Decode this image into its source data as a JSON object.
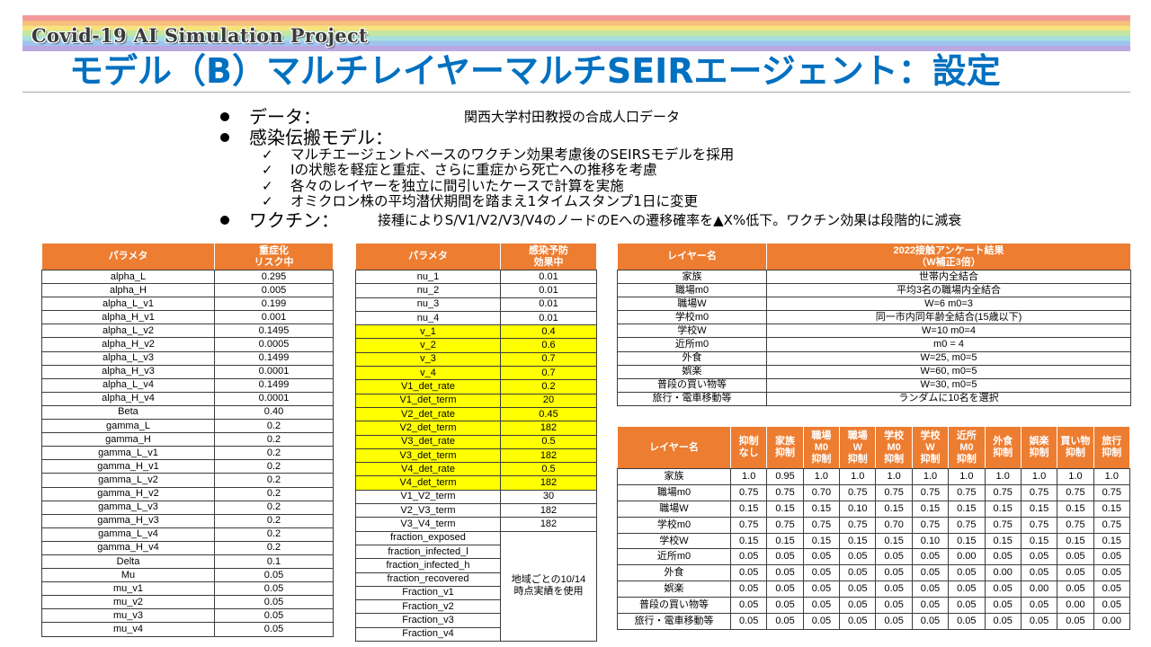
{
  "banner": {
    "title": "Covid-19 AI Simulation Project"
  },
  "slide": {
    "title": "モデル（B）マルチレイヤーマルチSEIRエージェント：設定"
  },
  "bullets": {
    "data": {
      "label": "データ：",
      "value": "関西大学村田教授の合成人口データ"
    },
    "model": {
      "label": "感染伝搬モデル：",
      "items": [
        "マルチエージェントベースのワクチン効果考慮後のSEIRSモデルを採用",
        "Iの状態を軽症と重症、さらに重症から死亡への推移を考慮",
        "各々のレイヤーを独立に間引いたケースで計算を実施",
        "オミクロン株の平均潜伏期間を踏まえ1タイムスタンプ1日に変更"
      ]
    },
    "vaccine": {
      "label": "ワクチン：",
      "value": "接種によりS/V1/V2/V3/V4のノードのEへの遷移確率を▲X%低下。ワクチン効果は段階的に減衰"
    }
  },
  "severity_table": {
    "headers": [
      "パラメタ",
      "重症化\nリスク中"
    ],
    "rows": [
      [
        "alpha_L",
        "0.295"
      ],
      [
        "alpha_H",
        "0.005"
      ],
      [
        "alpha_L_v1",
        "0.199"
      ],
      [
        "alpha_H_v1",
        "0.001"
      ],
      [
        "alpha_L_v2",
        "0.1495"
      ],
      [
        "alpha_H_v2",
        "0.0005"
      ],
      [
        "alpha_L_v3",
        "0.1499"
      ],
      [
        "alpha_H_v3",
        "0.0001"
      ],
      [
        "alpha_L_v4",
        "0.1499"
      ],
      [
        "alpha_H_v4",
        "0.0001"
      ],
      [
        "Beta",
        "0.40"
      ],
      [
        "gamma_L",
        "0.2"
      ],
      [
        "gamma_H",
        "0.2"
      ],
      [
        "gamma_L_v1",
        "0.2"
      ],
      [
        "gamma_H_v1",
        "0.2"
      ],
      [
        "gamma_L_v2",
        "0.2"
      ],
      [
        "gamma_H_v2",
        "0.2"
      ],
      [
        "gamma_L_v3",
        "0.2"
      ],
      [
        "gamma_H_v3",
        "0.2"
      ],
      [
        "gamma_L_v4",
        "0.2"
      ],
      [
        "gamma_H_v4",
        "0.2"
      ],
      [
        "Delta",
        "0.1"
      ],
      [
        "Mu",
        "0.05"
      ],
      [
        "mu_v1",
        "0.05"
      ],
      [
        "mu_v2",
        "0.05"
      ],
      [
        "mu_v3",
        "0.05"
      ],
      [
        "mu_v4",
        "0.05"
      ]
    ]
  },
  "prevention_table": {
    "headers": [
      "パラメタ",
      "感染予防\n効果中"
    ],
    "rows": [
      {
        "param": "nu_1",
        "value": "0.01"
      },
      {
        "param": "nu_2",
        "value": "0.01"
      },
      {
        "param": "nu_3",
        "value": "0.01"
      },
      {
        "param": "nu_4",
        "value": "0.01"
      },
      {
        "param": "v_1",
        "value": "0.4",
        "highlight": true
      },
      {
        "param": "v_2",
        "value": "0.6",
        "highlight": true
      },
      {
        "param": "v_3",
        "value": "0.7",
        "highlight": true
      },
      {
        "param": "v_4",
        "value": "0.7",
        "highlight": true
      },
      {
        "param": "V1_det_rate",
        "value": "0.2",
        "highlight": true
      },
      {
        "param": "V1_det_term",
        "value": "20",
        "highlight": true
      },
      {
        "param": "V2_det_rate",
        "value": "0.45",
        "highlight": true
      },
      {
        "param": "V2_det_term",
        "value": "182",
        "highlight": true
      },
      {
        "param": "V3_det_rate",
        "value": "0.5",
        "highlight": true
      },
      {
        "param": "V3_det_term",
        "value": "182",
        "highlight": true
      },
      {
        "param": "V4_det_rate",
        "value": "0.5",
        "highlight": true
      },
      {
        "param": "V4_det_term",
        "value": "182",
        "highlight": true
      },
      {
        "param": "V1_V2_term",
        "value": "30"
      },
      {
        "param": "V2_V3_term",
        "value": "182"
      },
      {
        "param": "V3_V4_term",
        "value": "182"
      },
      {
        "param": "fraction_exposed"
      },
      {
        "param": "fraction_infected_l"
      },
      {
        "param": "fraction_infected_h"
      },
      {
        "param": "fraction_recovered"
      },
      {
        "param": "Fraction_v1"
      },
      {
        "param": "Fraction_v2"
      },
      {
        "param": "Fraction_v3"
      },
      {
        "param": "Fraction_v4"
      }
    ],
    "shared_value": "地域ごとの10/14\n時点実績を使用"
  },
  "contact_table": {
    "headers": [
      "レイヤー名",
      "2022接触アンケート結果\n（W補正3倍）"
    ],
    "rows": [
      [
        "家族",
        "世帯内全結合"
      ],
      [
        "職場m0",
        "平均3名の職場内全結合"
      ],
      [
        "職場W",
        "W=6 m0=3"
      ],
      [
        "学校m0",
        "同一市内同年齢全結合(15歳以下)"
      ],
      [
        "学校W",
        "W=10 m0=4"
      ],
      [
        "近所m0",
        "m0 = 4"
      ],
      [
        "外食",
        "W=25, m0=5"
      ],
      [
        "娯楽",
        "W=60, m0=5"
      ],
      [
        "普段の買い物等",
        "W=30, m0=5"
      ],
      [
        "旅行・電車移動等",
        "ランダムに10名を選択"
      ]
    ]
  },
  "suppression_table": {
    "headers": [
      "レイヤー名",
      "抑制\nなし",
      "家族\n抑制",
      "職場\nM0\n抑制",
      "職場\nW\n抑制",
      "学校\nM0\n抑制",
      "学校\nW\n抑制",
      "近所\nM0\n抑制",
      "外食\n抑制",
      "娯楽\n抑制",
      "買い物\n抑制",
      "旅行\n抑制"
    ],
    "rows": [
      {
        "layer": "家族",
        "values": [
          "1.0",
          "0.95",
          "1.0",
          "1.0",
          "1.0",
          "1.0",
          "1.0",
          "1.0",
          "1.0",
          "1.0",
          "1.0"
        ]
      },
      {
        "layer": "職場m0",
        "values": [
          "0.75",
          "0.75",
          "0.70",
          "0.75",
          "0.75",
          "0.75",
          "0.75",
          "0.75",
          "0.75",
          "0.75",
          "0.75"
        ]
      },
      {
        "layer": "職場W",
        "values": [
          "0.15",
          "0.15",
          "0.15",
          "0.10",
          "0.15",
          "0.15",
          "0.15",
          "0.15",
          "0.15",
          "0.15",
          "0.15"
        ]
      },
      {
        "layer": "学校m0",
        "values": [
          "0.75",
          "0.75",
          "0.75",
          "0.75",
          "0.70",
          "0.75",
          "0.75",
          "0.75",
          "0.75",
          "0.75",
          "0.75"
        ]
      },
      {
        "layer": "学校W",
        "values": [
          "0.15",
          "0.15",
          "0.15",
          "0.15",
          "0.15",
          "0.10",
          "0.15",
          "0.15",
          "0.15",
          "0.15",
          "0.15"
        ]
      },
      {
        "layer": "近所m0",
        "values": [
          "0.05",
          "0.05",
          "0.05",
          "0.05",
          "0.05",
          "0.05",
          "0.00",
          "0.05",
          "0.05",
          "0.05",
          "0.05"
        ]
      },
      {
        "layer": "外食",
        "values": [
          "0.05",
          "0.05",
          "0.05",
          "0.05",
          "0.05",
          "0.05",
          "0.05",
          "0.00",
          "0.05",
          "0.05",
          "0.05"
        ]
      },
      {
        "layer": "娯楽",
        "values": [
          "0.05",
          "0.05",
          "0.05",
          "0.05",
          "0.05",
          "0.05",
          "0.05",
          "0.05",
          "0.00",
          "0.05",
          "0.05"
        ]
      },
      {
        "layer": "普段の買い物等",
        "values": [
          "0.05",
          "0.05",
          "0.05",
          "0.05",
          "0.05",
          "0.05",
          "0.05",
          "0.05",
          "0.05",
          "0.00",
          "0.05"
        ]
      },
      {
        "layer": "旅行・電車移動等",
        "values": [
          "0.05",
          "0.05",
          "0.05",
          "0.05",
          "0.05",
          "0.05",
          "0.05",
          "0.05",
          "0.05",
          "0.05",
          "0.00"
        ]
      }
    ]
  },
  "colors": {
    "title_blue": "#0070C0",
    "header_orange": "#ED7D31",
    "highlight_yellow": "#FFFF00"
  },
  "icons": {
    "bullet": "bullet-dot-icon",
    "check": "checkmark-icon"
  }
}
